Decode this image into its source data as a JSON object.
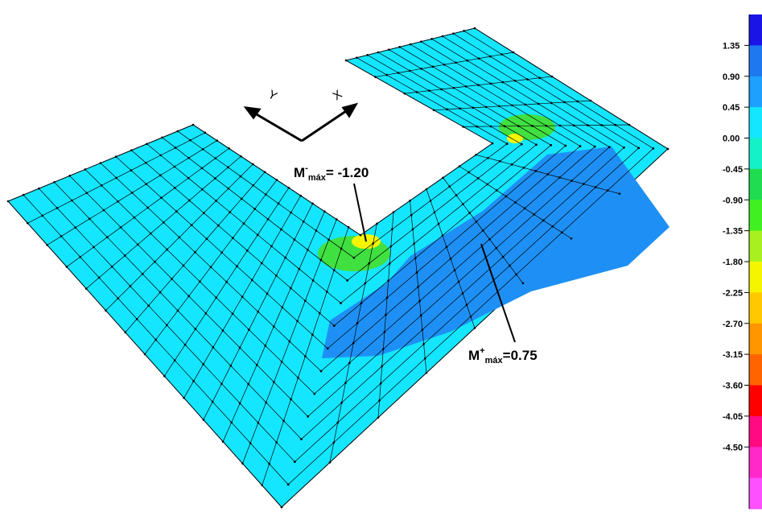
{
  "axes": {
    "y": "Y",
    "x": "X"
  },
  "annotations": [
    {
      "symbol": "M",
      "sup": "-",
      "sub": "máx",
      "value": "= -1.20"
    },
    {
      "symbol": "M",
      "sup": "+",
      "sub": "máx",
      "value": "=0.75"
    }
  ],
  "legend": {
    "labels": [
      "1.35",
      "0.90",
      "0.45",
      "0.00",
      "-0.45",
      "-0.90",
      "-1.35",
      "-1.80",
      "-2.25",
      "-2.70",
      "-3.15",
      "-3.60",
      "-4.05",
      "-4.50"
    ],
    "colors": [
      "#1a14e6",
      "#1e78f0",
      "#1ea0ff",
      "#14e6ff",
      "#14f0c8",
      "#20dc50",
      "#40f020",
      "#a8f020",
      "#f5f500",
      "#ffc800",
      "#ff9600",
      "#ff6400",
      "#ff0000",
      "#ff0a82",
      "#ff28c8",
      "#ff50ff"
    ]
  }
}
